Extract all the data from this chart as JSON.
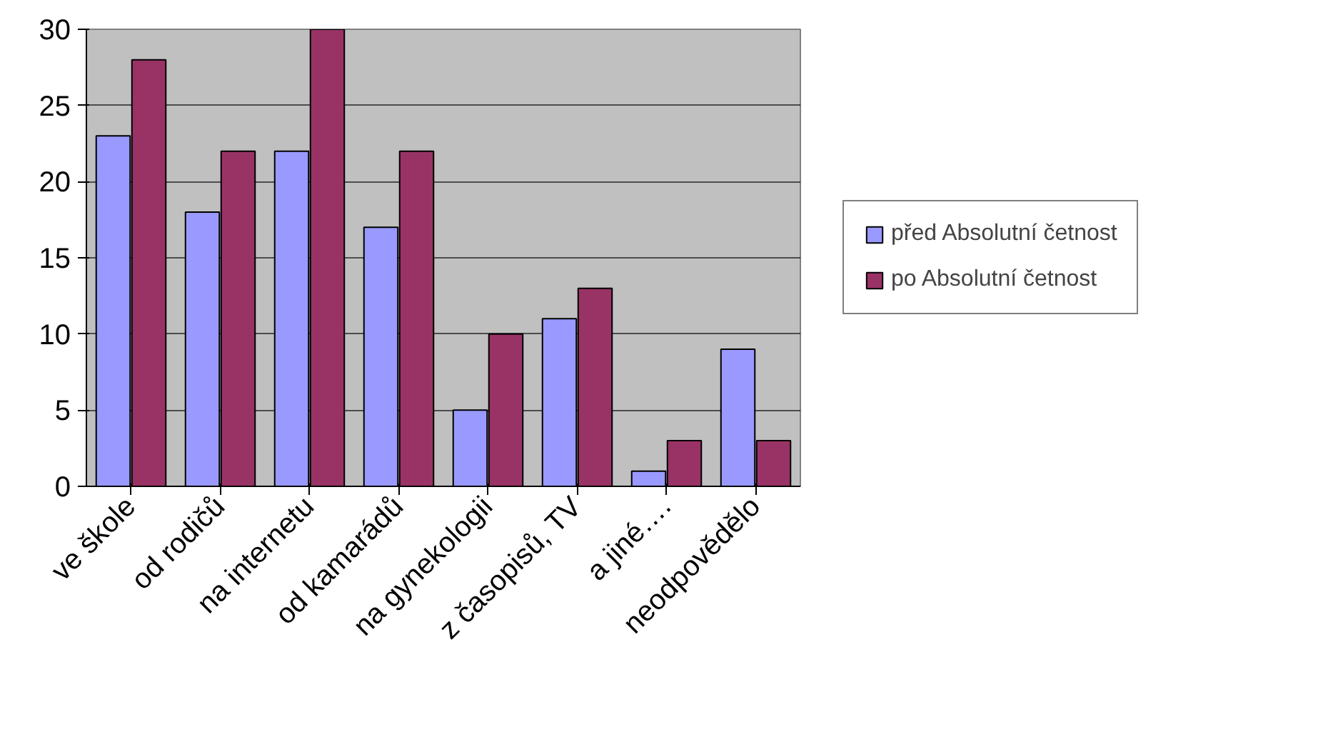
{
  "chart_data": {
    "type": "bar",
    "categories": [
      "ve škole",
      "od rodičů",
      "na internetu",
      "od kamarádů",
      "na gynekologii",
      "z časopisů, TV",
      "a jiné….",
      "neodpovědělo"
    ],
    "series": [
      {
        "name": "před Absolutní četnost",
        "color": "#9999ff",
        "values": [
          23,
          18,
          22,
          17,
          5,
          11,
          1,
          9
        ]
      },
      {
        "name": "po Absolutní četnost",
        "color": "#993366",
        "values": [
          28,
          22,
          30,
          22,
          10,
          13,
          3,
          3
        ]
      }
    ],
    "ylim": [
      0,
      30
    ],
    "yticks": [
      0,
      5,
      10,
      15,
      20,
      25,
      30
    ],
    "grid": "y",
    "legend": "right"
  }
}
